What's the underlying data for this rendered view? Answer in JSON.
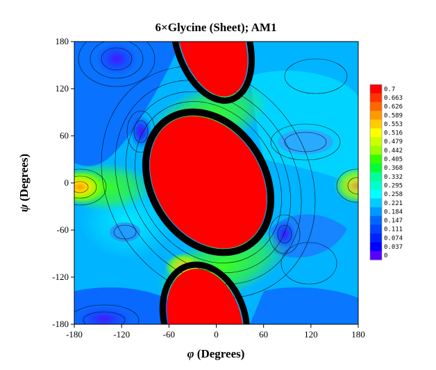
{
  "chart_data": {
    "type": "heatmap",
    "title": "6×Glycine (Sheet); AM1",
    "xlabel_symbol": "φ",
    "xlabel_text": " (Degrees)",
    "ylabel_symbol": "ψ",
    "ylabel_text": " (Degrees)",
    "xlim": [
      -180,
      180
    ],
    "ylim": [
      -180,
      180
    ],
    "x_ticks": [
      "-180",
      "-120",
      "-60",
      "0",
      "60",
      "120",
      "180"
    ],
    "y_ticks": [
      "180",
      "120",
      "60",
      "0",
      "-60",
      "-120",
      "-180"
    ],
    "colorbar": {
      "labels": [
        "0.7",
        "0.663",
        "0.626",
        "0.589",
        "0.553",
        "0.516",
        "0.479",
        "0.442",
        "0.405",
        "0.368",
        "0.332",
        "0.295",
        "0.258",
        "0.221",
        "0.184",
        "0.147",
        "0.111",
        "0.074",
        "0.037",
        "0"
      ],
      "colors": [
        "#ff0000",
        "#ff3300",
        "#ff6600",
        "#ff9900",
        "#ffcc00",
        "#ffff00",
        "#ccff00",
        "#99ff00",
        "#33ff00",
        "#00ff33",
        "#00ff99",
        "#00ffcc",
        "#00ffff",
        "#00ccff",
        "#0099ff",
        "#0066ff",
        "#0044ff",
        "#0022ff",
        "#0000ff",
        "#5500ff"
      ]
    },
    "features": [
      {
        "name": "high-region-center",
        "phi": -30,
        "psi": 20,
        "value": 0.7
      },
      {
        "name": "high-region-top",
        "phi": -20,
        "psi": 165,
        "value": 0.7
      },
      {
        "name": "high-region-bottom",
        "phi": -20,
        "psi": -155,
        "value": 0.7
      },
      {
        "name": "minimum-top-left",
        "phi": -120,
        "psi": 155,
        "value": 0.0
      },
      {
        "name": "minimum-left",
        "phi": -95,
        "psi": 65,
        "value": 0.0
      },
      {
        "name": "minimum-right",
        "phi": 90,
        "psi": -65,
        "value": 0.0
      },
      {
        "name": "local-max-left-edge",
        "phi": -175,
        "psi": -5,
        "value": 0.55
      }
    ]
  }
}
